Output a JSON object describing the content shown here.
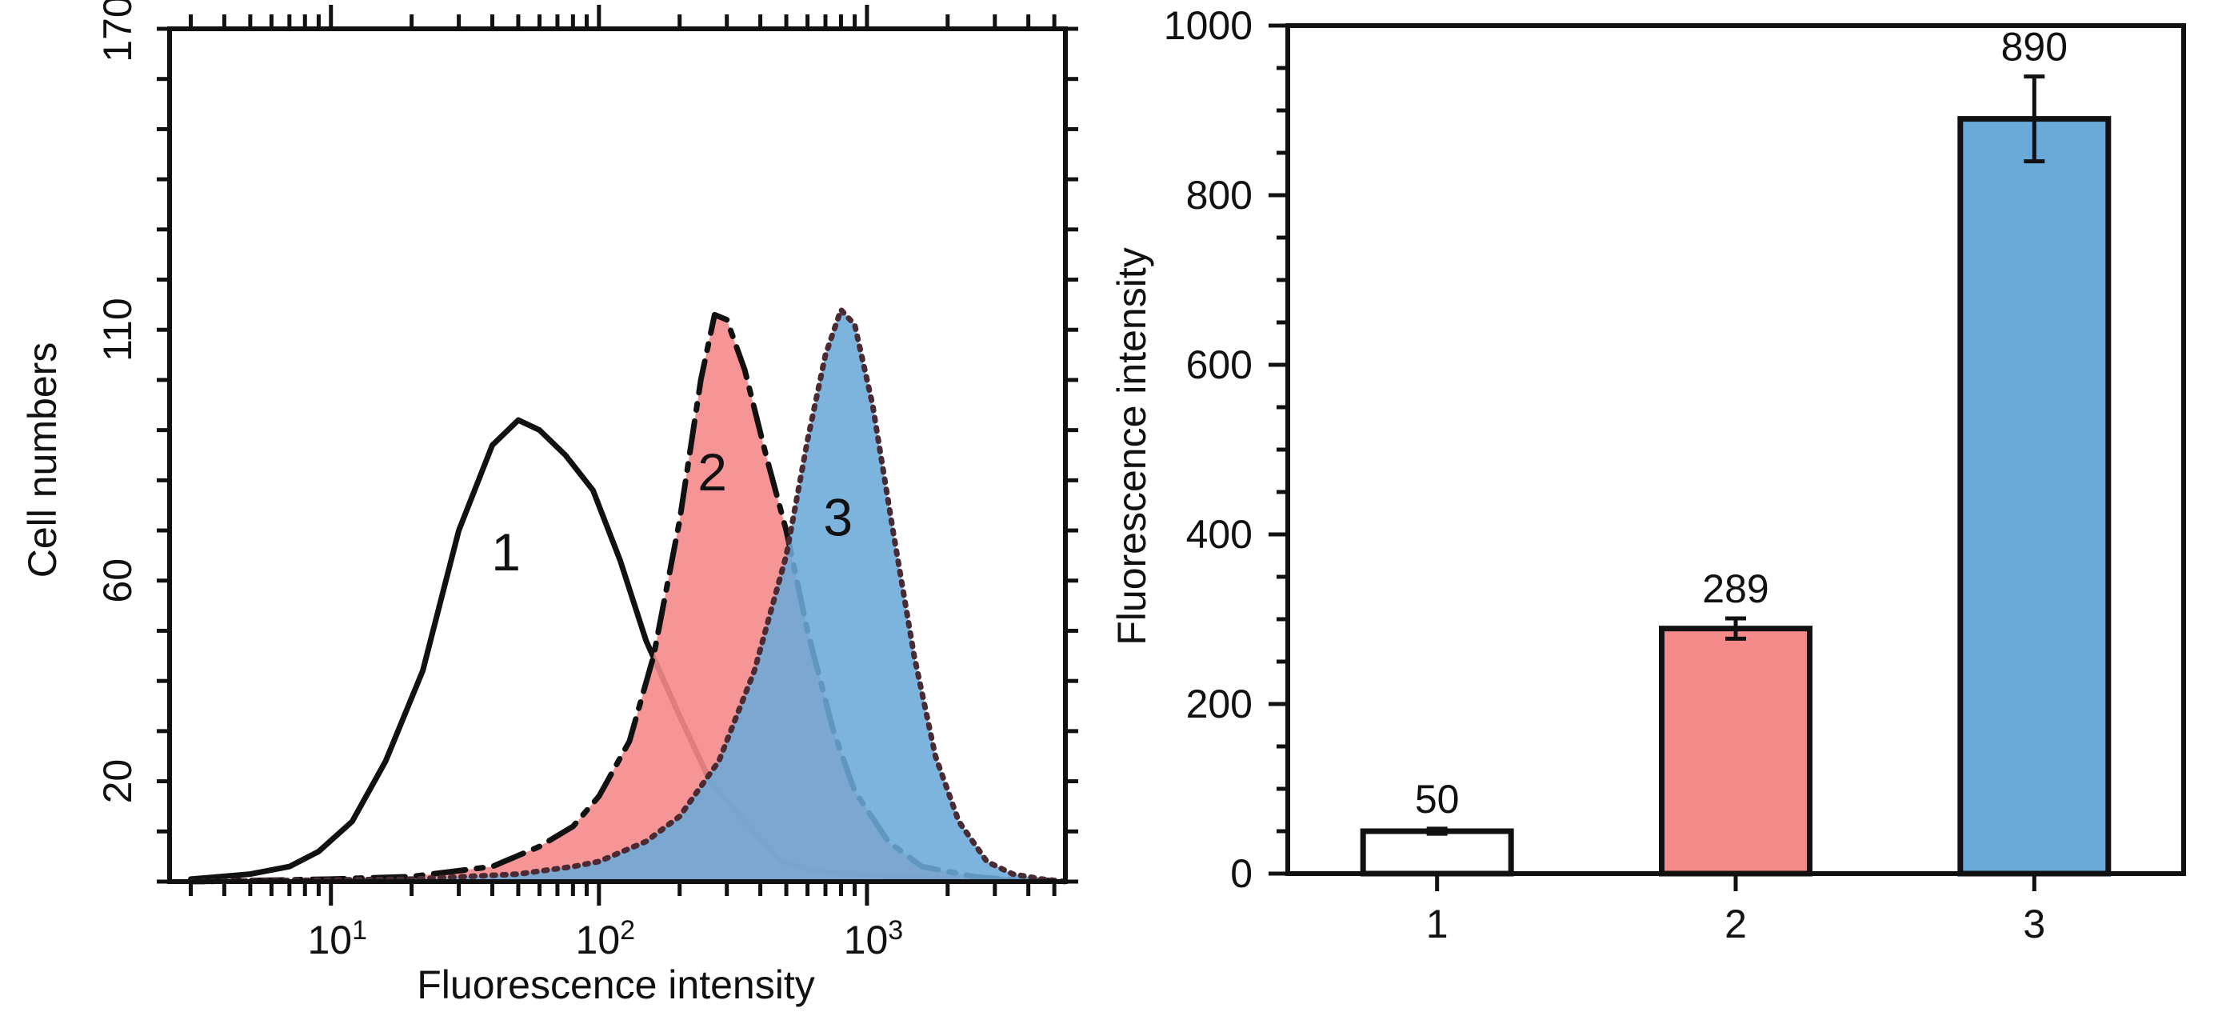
{
  "chart_data": [
    {
      "type": "area",
      "name": "flow-cytometry-histogram",
      "xlabel": "Fluorescence intensity",
      "ylabel": "Cell numbers",
      "xscale": "log",
      "xlim": [
        2.5,
        5500
      ],
      "ylim": [
        0,
        170
      ],
      "x_ticks": [
        {
          "value": 10,
          "base": "10",
          "exp": "1"
        },
        {
          "value": 100,
          "base": "10",
          "exp": "2"
        },
        {
          "value": 1000,
          "base": "10",
          "exp": "3"
        }
      ],
      "y_ticks": [
        {
          "value": 20,
          "label": "20"
        },
        {
          "value": 60,
          "label": "60"
        },
        {
          "value": 110,
          "label": "110"
        },
        {
          "value": 170,
          "label": "170"
        }
      ],
      "series": [
        {
          "name": "1",
          "label": "1",
          "label_at": [
            45,
            62
          ],
          "stroke": "#111111",
          "fill": "none",
          "dash": "solid",
          "x": [
            3,
            5,
            7,
            9,
            12,
            16,
            22,
            30,
            40,
            50,
            60,
            75,
            95,
            120,
            150,
            200,
            260,
            350,
            480,
            650,
            900,
            1500,
            3000,
            5000
          ],
          "y": [
            0.5,
            1.5,
            3,
            6,
            12,
            24,
            42,
            70,
            87,
            92,
            90,
            85,
            78,
            64,
            48,
            33,
            20,
            12,
            4,
            2,
            1.5,
            0.8,
            0.3,
            0.2
          ]
        },
        {
          "name": "2",
          "label": "2",
          "label_at": [
            265,
            78
          ],
          "stroke": "#111111",
          "fill": "#f48a8a",
          "fill_opacity": 0.9,
          "dash": "dashdot",
          "x": [
            3,
            10,
            20,
            40,
            60,
            80,
            100,
            130,
            160,
            200,
            240,
            270,
            300,
            350,
            420,
            500,
            600,
            750,
            900,
            1200,
            1600,
            2500,
            3500,
            5000
          ],
          "y": [
            0,
            0.5,
            1,
            3,
            7,
            11,
            17,
            28,
            45,
            72,
            100,
            113,
            112,
            102,
            85,
            70,
            50,
            30,
            18,
            8,
            3,
            1,
            0.3,
            0.1
          ]
        },
        {
          "name": "3",
          "label": "3",
          "label_at": [
            780,
            69
          ],
          "stroke": "#4a2a33",
          "fill": "#6aaad9",
          "fill_opacity": 0.88,
          "dash": "dotted",
          "x": [
            3,
            20,
            50,
            80,
            100,
            150,
            200,
            280,
            380,
            500,
            600,
            700,
            800,
            900,
            1050,
            1250,
            1500,
            1800,
            2200,
            2800,
            3500,
            4500,
            5500
          ],
          "y": [
            0,
            0.5,
            1.5,
            3,
            4,
            8,
            13,
            24,
            42,
            65,
            88,
            105,
            114,
            111,
            95,
            70,
            45,
            25,
            12,
            4,
            1.5,
            0.5,
            0
          ]
        }
      ]
    },
    {
      "type": "bar",
      "name": "fluorescence-bar",
      "categories": [
        "1",
        "2",
        "3"
      ],
      "values": [
        50,
        289,
        890
      ],
      "value_labels": [
        "50",
        "289",
        "890"
      ],
      "errors": [
        3,
        12,
        50
      ],
      "colors": [
        "#ffffff",
        "#f48a8a",
        "#6aaad9"
      ],
      "xlabel": "",
      "ylabel": "Fluorescence intensity",
      "ylim": [
        0,
        1000
      ],
      "y_ticks": [
        {
          "value": 0,
          "label": "0"
        },
        {
          "value": 200,
          "label": "200"
        },
        {
          "value": 400,
          "label": "400"
        },
        {
          "value": 600,
          "label": "600"
        },
        {
          "value": 800,
          "label": "800"
        },
        {
          "value": 1000,
          "label": "1000"
        }
      ]
    }
  ]
}
